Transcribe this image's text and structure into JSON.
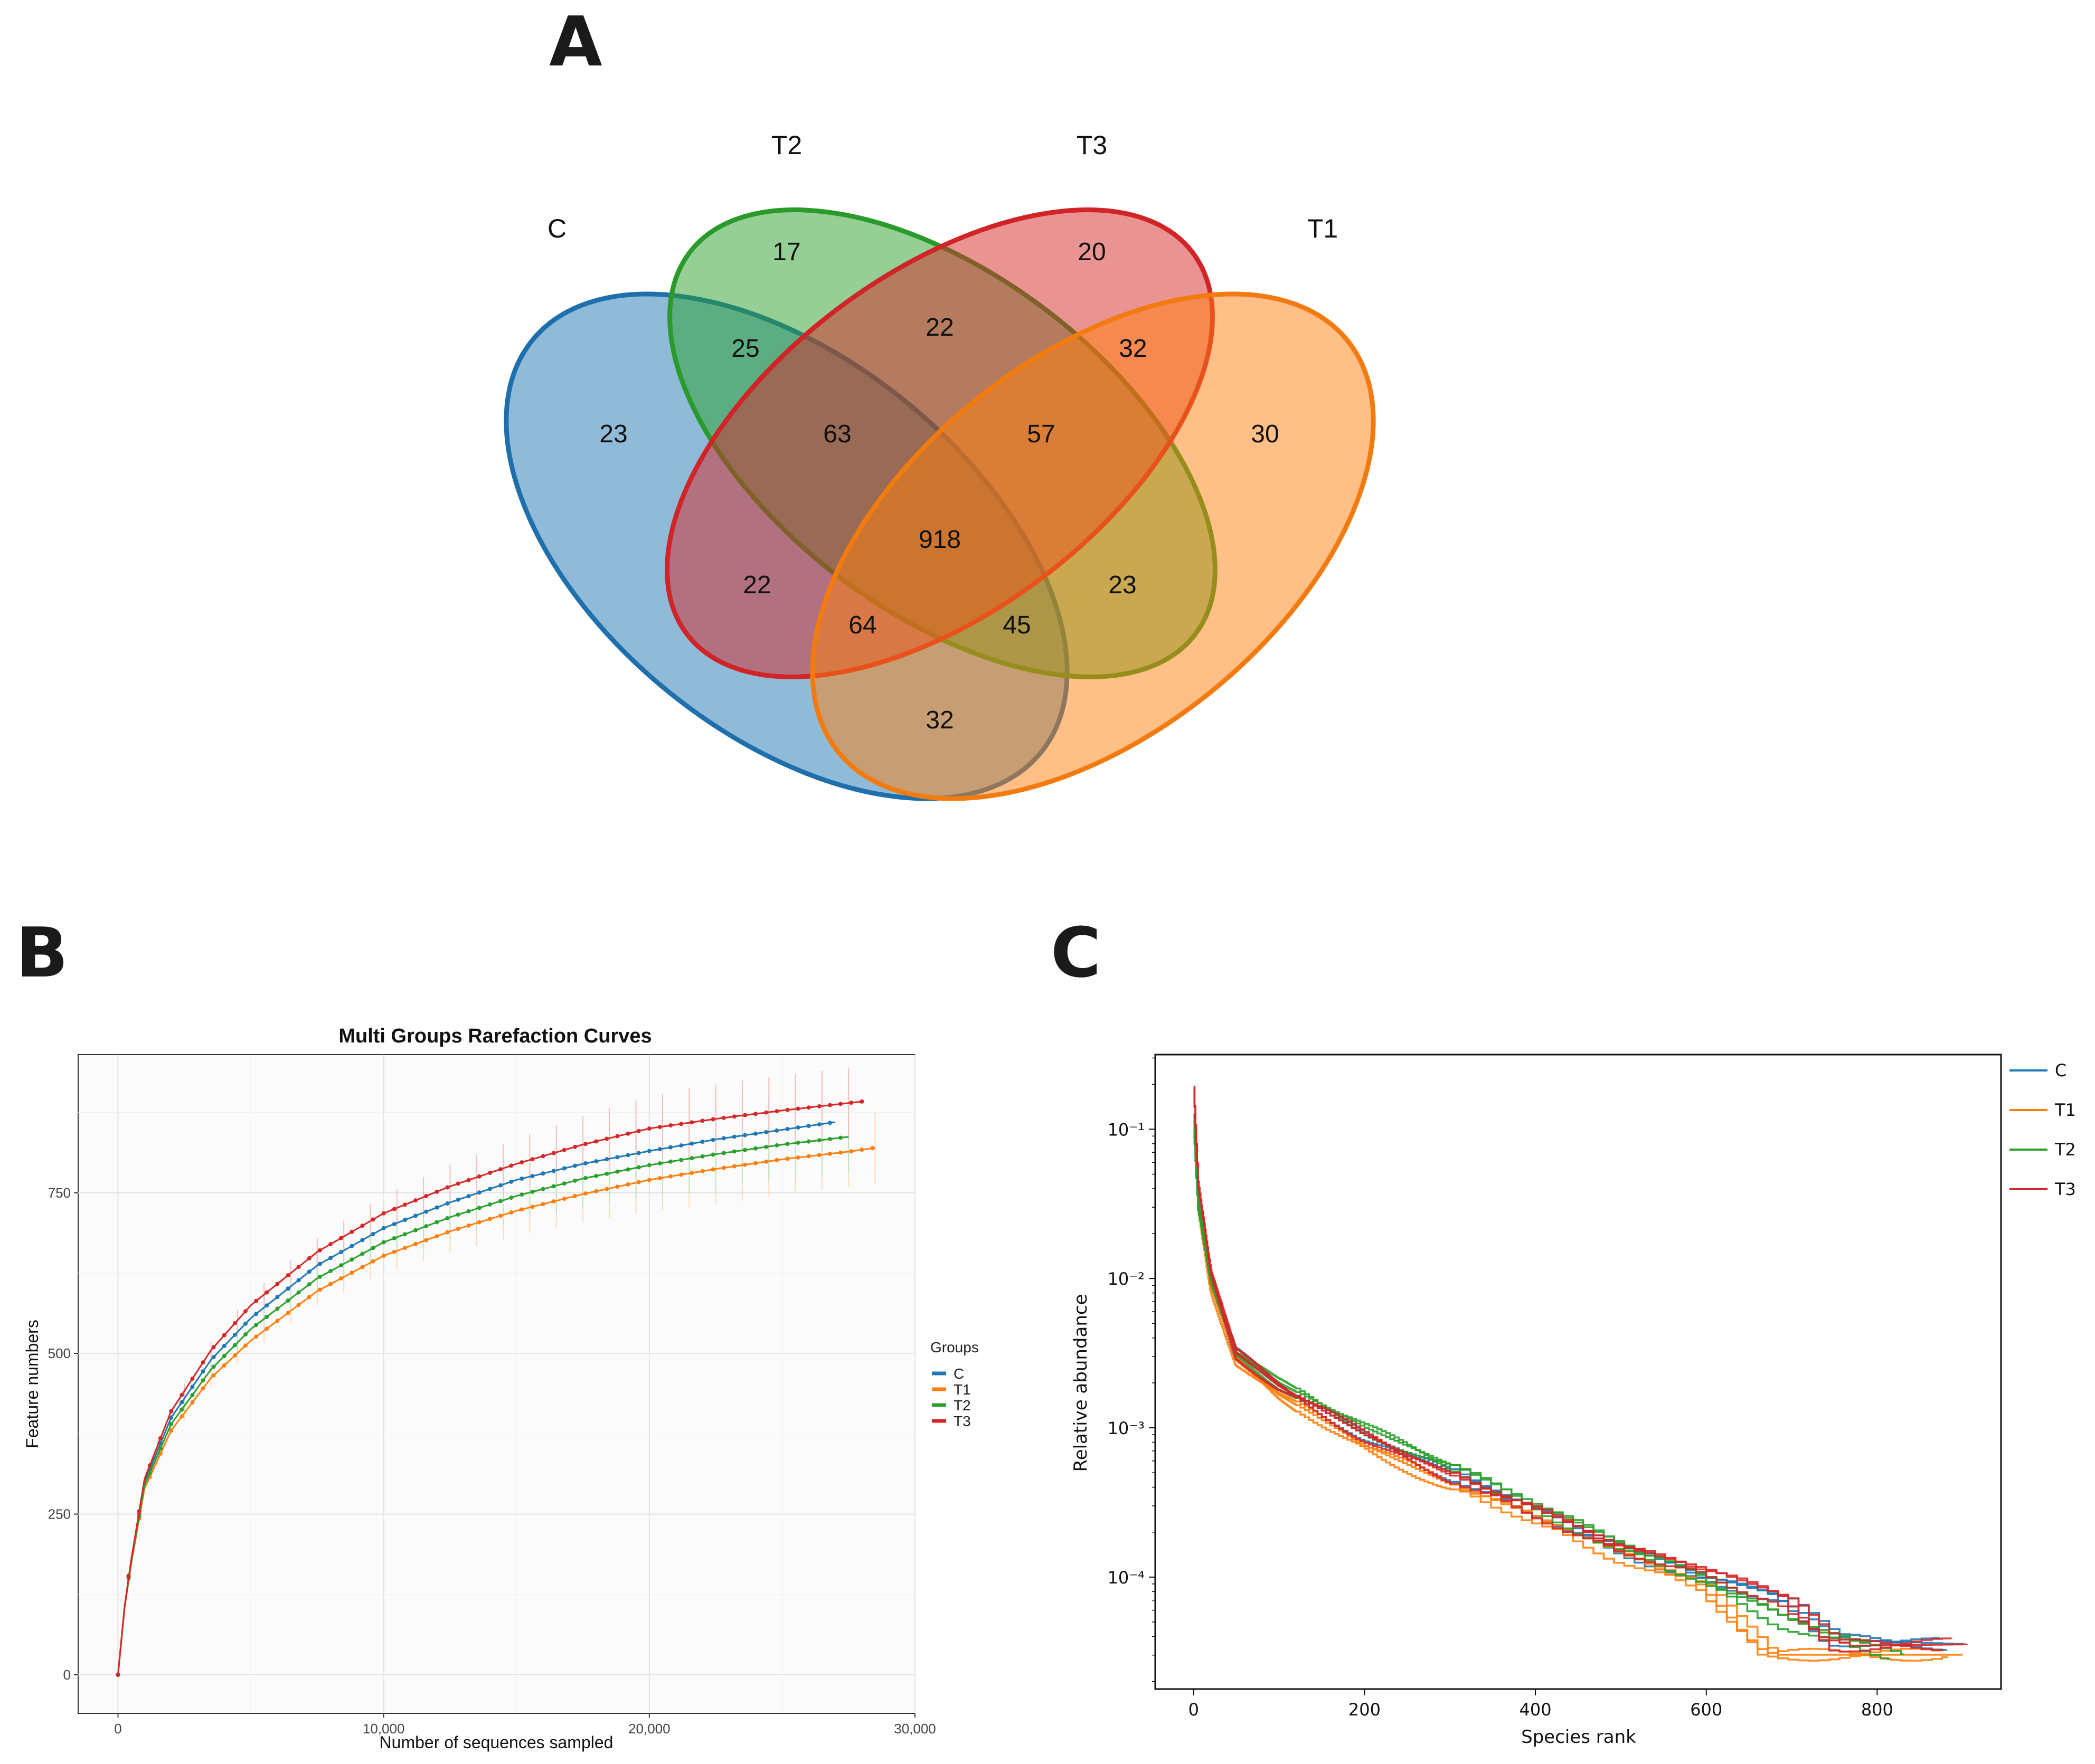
{
  "panels": {
    "a": "A",
    "b": "B",
    "c": "C"
  },
  "colors": {
    "C": "#1f77b4",
    "T1": "#ff7f0e",
    "T2": "#2ca02c",
    "T3": "#d62728"
  },
  "chart_data": [
    {
      "type": "venn",
      "sets": [
        "C",
        "T2",
        "T3",
        "T1"
      ],
      "regions": {
        "C_only": 23,
        "T2_only": 17,
        "T3_only": 20,
        "T1_only": 30,
        "C_T2": 25,
        "T2_T3": 22,
        "T3_T1": 32,
        "C_T2_T3": 63,
        "T2_T3_T1": 57,
        "all": 918,
        "C_T3": 22,
        "T2_T1": 23,
        "C_T3_T1": 64,
        "C_T2_T1": 45,
        "C_T1": 32
      }
    },
    {
      "type": "line",
      "title": "Multi Groups Rarefaction Curves",
      "xlabel": "Number of sequences sampled",
      "ylabel": "Feature numbers",
      "xlim": [
        -1500,
        30000
      ],
      "ylim": [
        -60,
        965
      ],
      "xticks": [
        "0",
        "10,000",
        "20,000",
        "30,000"
      ],
      "xtick_values": [
        0,
        10000,
        20000,
        30000
      ],
      "yticks": [
        "0",
        "250",
        "500",
        "750"
      ],
      "ytick_values": [
        0,
        250,
        500,
        750
      ],
      "legend_title": "Groups",
      "series": [
        {
          "name": "C",
          "x": [
            0,
            300,
            1000,
            2000,
            3500,
            5000,
            7500,
            10000,
            12500,
            15000,
            17500,
            20000,
            22500,
            25000,
            27000
          ],
          "values": [
            0,
            128,
            300,
            400,
            490,
            555,
            637,
            695,
            735,
            770,
            795,
            815,
            833,
            848,
            860
          ]
        },
        {
          "name": "T1",
          "x": [
            0,
            300,
            1000,
            2000,
            3500,
            5000,
            7500,
            10000,
            12500,
            15000,
            17500,
            20000,
            22500,
            25000,
            27500,
            28500
          ],
          "values": [
            0,
            126,
            290,
            380,
            462,
            520,
            597,
            652,
            690,
            722,
            748,
            770,
            787,
            802,
            814,
            820
          ]
        },
        {
          "name": "T2",
          "x": [
            0,
            300,
            1000,
            2000,
            3500,
            5000,
            7500,
            10000,
            12500,
            15000,
            17500,
            20000,
            22500,
            25000,
            27500
          ],
          "values": [
            0,
            127,
            295,
            390,
            475,
            538,
            617,
            673,
            712,
            745,
            772,
            793,
            810,
            825,
            837
          ]
        },
        {
          "name": "T3",
          "x": [
            0,
            300,
            1000,
            2000,
            3500,
            5000,
            7500,
            10000,
            12500,
            15000,
            17500,
            20000,
            22500,
            25000,
            28000
          ],
          "values": [
            0,
            129,
            305,
            410,
            505,
            575,
            658,
            718,
            760,
            795,
            825,
            850,
            865,
            878,
            892
          ]
        }
      ]
    },
    {
      "type": "line",
      "xlabel": "Species rank",
      "ylabel": "Relative abundance",
      "yscale": "log",
      "xlim": [
        -45,
        945
      ],
      "ylim_log10": [
        -4.75,
        -0.5
      ],
      "xticks": [
        "0",
        "200",
        "400",
        "600",
        "800"
      ],
      "xtick_values": [
        0,
        200,
        400,
        600,
        800
      ],
      "yticks": [
        "10⁻¹",
        "10⁻²",
        "10⁻³",
        "10⁻⁴"
      ],
      "ytick_log10": [
        -1,
        -2,
        -3,
        -4
      ],
      "series": [
        {
          "name": "C",
          "x": [
            0,
            5,
            20,
            50,
            100,
            200,
            300,
            400,
            500,
            600,
            700,
            760,
            900
          ],
          "log10": [
            -0.9,
            -1.4,
            -2.0,
            -2.5,
            -2.72,
            -3.05,
            -3.3,
            -3.55,
            -3.8,
            -4.0,
            -4.15,
            -4.42,
            -4.45
          ]
        },
        {
          "name": "T1",
          "x": [
            0,
            5,
            20,
            50,
            100,
            200,
            300,
            400,
            500,
            600,
            680,
            900
          ],
          "log10": [
            -0.95,
            -1.5,
            -2.05,
            -2.55,
            -2.78,
            -3.12,
            -3.38,
            -3.6,
            -3.85,
            -4.05,
            -4.52,
            -4.52
          ]
        },
        {
          "name": "T2",
          "x": [
            0,
            5,
            20,
            50,
            100,
            200,
            300,
            400,
            500,
            600,
            700,
            830
          ],
          "log10": [
            -0.95,
            -1.5,
            -2.0,
            -2.5,
            -2.7,
            -3.0,
            -3.25,
            -3.52,
            -3.78,
            -4.0,
            -4.3,
            -4.52
          ]
        },
        {
          "name": "T3",
          "x": [
            0,
            5,
            20,
            50,
            100,
            200,
            300,
            400,
            500,
            600,
            700,
            760,
            905
          ],
          "log10": [
            -0.72,
            -1.35,
            -1.95,
            -2.5,
            -2.72,
            -3.05,
            -3.32,
            -3.55,
            -3.8,
            -3.95,
            -4.15,
            -4.46,
            -4.45
          ]
        }
      ]
    }
  ]
}
